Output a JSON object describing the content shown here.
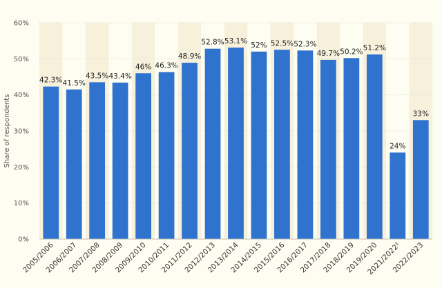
{
  "chart_data": {
    "type": "bar",
    "ylabel": "Share of respondents",
    "xlabel": "",
    "ylim": [
      0,
      60
    ],
    "yticks": [
      "0%",
      "10%",
      "20%",
      "30%",
      "40%",
      "50%",
      "60%"
    ],
    "grid": true,
    "categories": [
      "2005/2006",
      "2006/2007",
      "2007/2008",
      "2008/2009",
      "2009/2010",
      "2010/2011",
      "2011/2012",
      "2012/2013",
      "2013/2014",
      "2014/2015",
      "2015/2016",
      "2016/2017",
      "2017/2018",
      "2018/2019",
      "2019/2020",
      "2021/2022¹",
      "2022/2023"
    ],
    "values": [
      42.3,
      41.5,
      43.5,
      43.4,
      46,
      46.3,
      48.9,
      52.8,
      53.1,
      52,
      52.5,
      52.3,
      49.7,
      50.2,
      51.2,
      24,
      33
    ],
    "data_labels": [
      "42.3%",
      "41.5%",
      "43.5%",
      "43.4%",
      "46%",
      "46.3%",
      "48.9%",
      "52.8%",
      "53.1%",
      "52%",
      "52.5%",
      "52.3%",
      "49.7%",
      "50.2%",
      "51.2%",
      "24%",
      "33%"
    ],
    "bar_color": "#2f73cf",
    "band_color": "#f7f1dc"
  }
}
